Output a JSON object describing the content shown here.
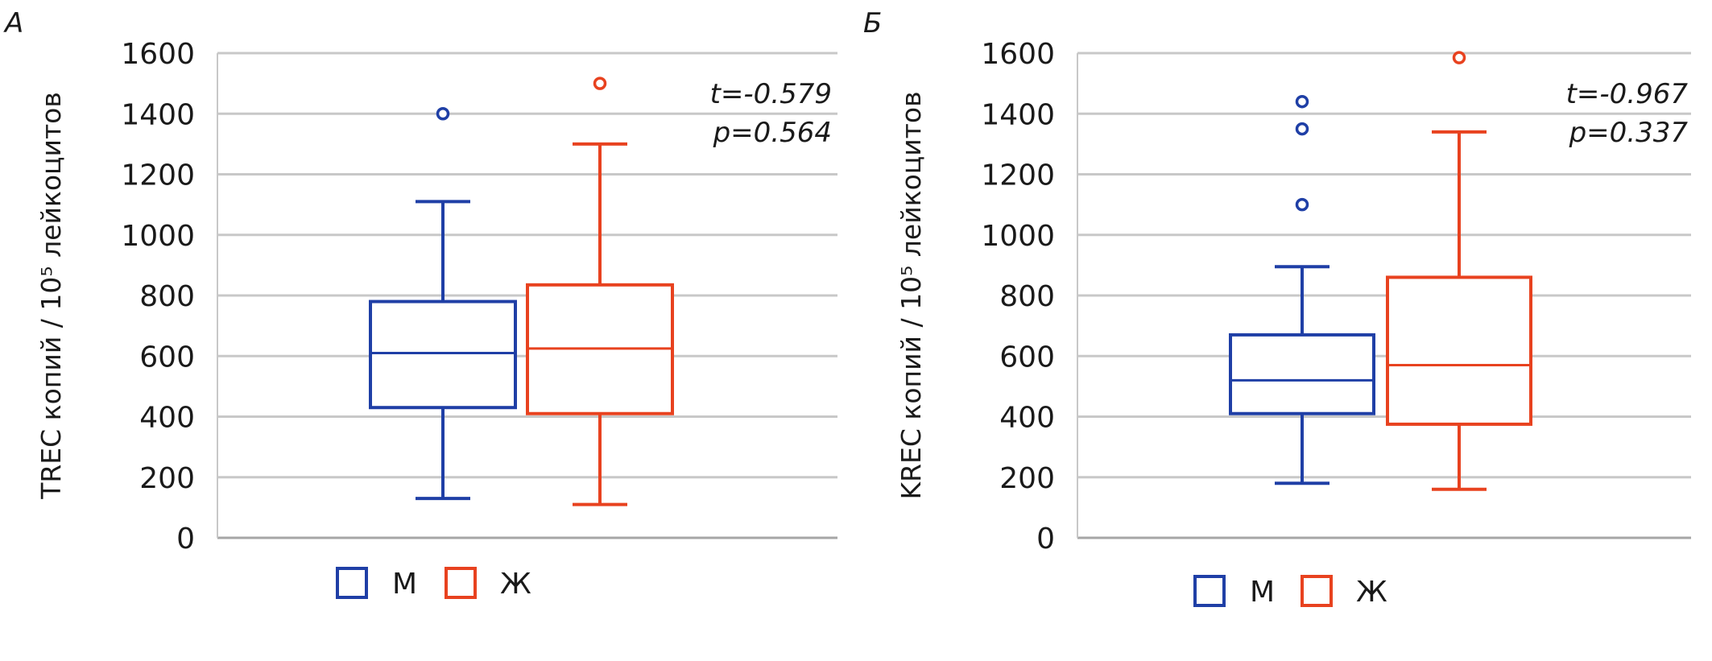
{
  "colors": {
    "male": "#1f3fa6",
    "female": "#e8421f",
    "grid": "#c8c8c8",
    "axis": "#a6a6a6",
    "text": "#1a1a1a"
  },
  "chart_data": [
    {
      "type": "boxplot",
      "panel_label": "А",
      "ylabel": "TREC копий / 10⁵ лейкоцитов",
      "ylim": [
        0,
        1600
      ],
      "yticks": [
        0,
        200,
        400,
        600,
        800,
        1000,
        1200,
        1400,
        1600
      ],
      "grid": true,
      "legend_position": "bottom",
      "stats": {
        "t": "t=-0.579",
        "p": "p=0.564"
      },
      "series": [
        {
          "name": "М",
          "color": "#1f3fa6",
          "min": 130,
          "q1": 430,
          "median": 610,
          "q3": 780,
          "max": 1110,
          "outliers": [
            1400
          ]
        },
        {
          "name": "Ж",
          "color": "#e8421f",
          "min": 110,
          "q1": 410,
          "median": 625,
          "q3": 835,
          "max": 1300,
          "outliers": [
            1500
          ]
        }
      ]
    },
    {
      "type": "boxplot",
      "panel_label": "Б",
      "ylabel": "KREC копий / 10⁵ лейкоцитов",
      "ylim": [
        0,
        1600
      ],
      "yticks": [
        0,
        200,
        400,
        600,
        800,
        1000,
        1200,
        1400,
        1600
      ],
      "grid": true,
      "legend_position": "bottom",
      "stats": {
        "t": "t=-0.967",
        "p": "p=0.337"
      },
      "series": [
        {
          "name": "М",
          "color": "#1f3fa6",
          "min": 180,
          "q1": 410,
          "median": 520,
          "q3": 670,
          "max": 895,
          "outliers": [
            1100,
            1350,
            1440
          ]
        },
        {
          "name": "Ж",
          "color": "#e8421f",
          "min": 160,
          "q1": 375,
          "median": 570,
          "q3": 860,
          "max": 1340,
          "outliers": [
            1585
          ]
        }
      ]
    }
  ]
}
